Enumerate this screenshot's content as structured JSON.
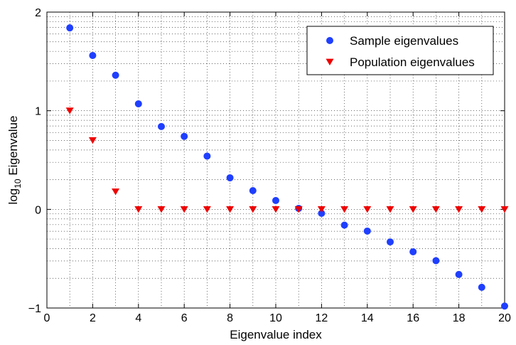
{
  "chart_data": {
    "type": "scatter",
    "title": "",
    "xlabel": "Eigenvalue index",
    "ylabel_main": "log",
    "ylabel_sub": "10",
    "ylabel_rest": " Eigenvalue",
    "xlim": [
      0,
      20
    ],
    "ylim": [
      -1,
      2
    ],
    "xticks": [
      0,
      2,
      4,
      6,
      8,
      10,
      12,
      14,
      16,
      18,
      20
    ],
    "xtick_labels": [
      "0",
      "2",
      "4",
      "6",
      "8",
      "10",
      "12",
      "14",
      "16",
      "18",
      "20"
    ],
    "yticks": [
      -1,
      0,
      1,
      2
    ],
    "ytick_labels": [
      "−1",
      "0",
      "1",
      "2"
    ],
    "grid": true,
    "legend_position": "top-right",
    "series": [
      {
        "name": "Sample eigenvalues",
        "marker": "circle",
        "color": "#1f3fff",
        "x": [
          1,
          2,
          3,
          4,
          5,
          6,
          7,
          8,
          9,
          10,
          11,
          12,
          13,
          14,
          15,
          16,
          17,
          18,
          19,
          20
        ],
        "y": [
          1.84,
          1.56,
          1.36,
          1.07,
          0.84,
          0.74,
          0.54,
          0.32,
          0.19,
          0.09,
          0.01,
          -0.04,
          -0.16,
          -0.22,
          -0.33,
          -0.43,
          -0.52,
          -0.66,
          -0.79,
          -0.98
        ]
      },
      {
        "name": "Population eigenvalues",
        "marker": "triangle-down",
        "color": "#ee0000",
        "x": [
          1,
          2,
          3,
          4,
          5,
          6,
          7,
          8,
          9,
          10,
          11,
          12,
          13,
          14,
          15,
          16,
          17,
          18,
          19,
          20
        ],
        "y": [
          1.0,
          0.7,
          0.18,
          0,
          0,
          0,
          0,
          0,
          0,
          0,
          0,
          0,
          0,
          0,
          0,
          0,
          0,
          0,
          0,
          0
        ]
      }
    ]
  }
}
